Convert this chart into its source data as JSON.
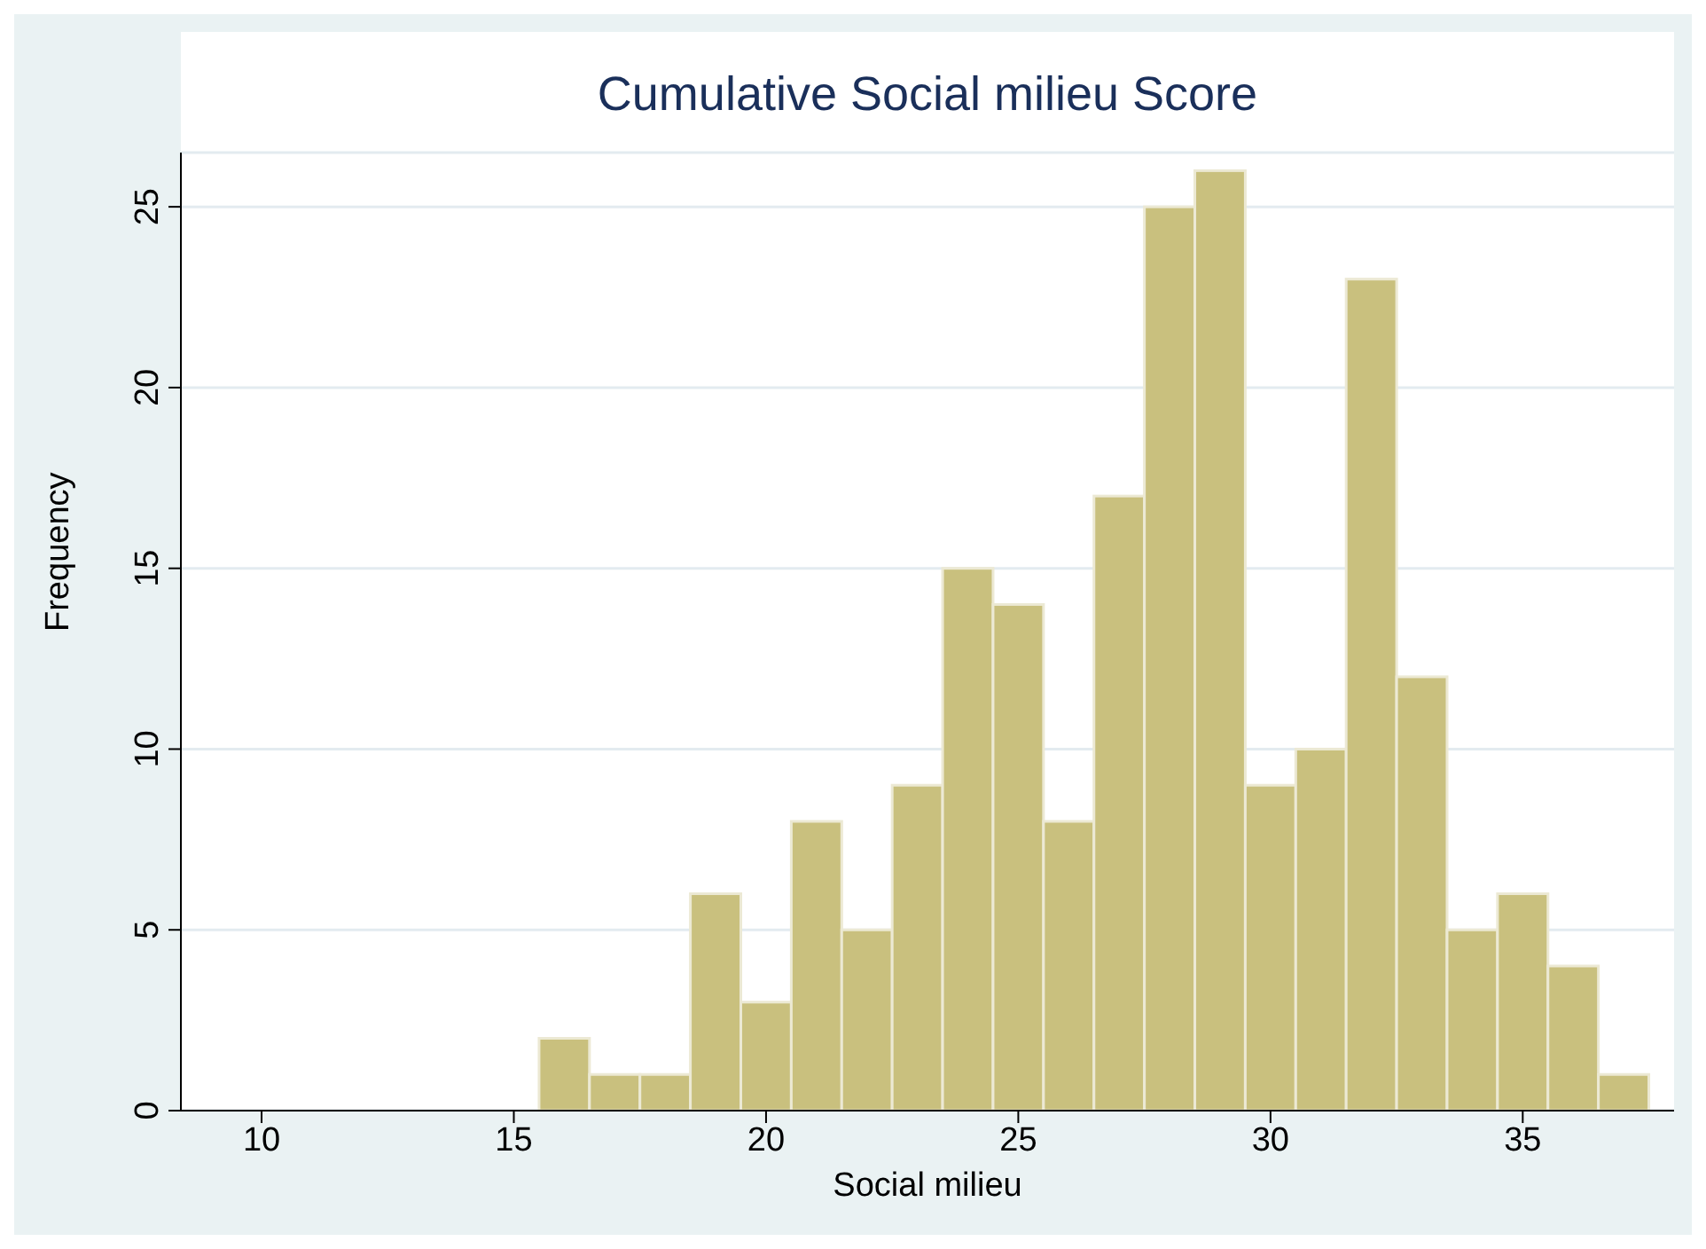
{
  "chart_data": {
    "type": "histogram",
    "title": "Cumulative Social milieu Score",
    "xlabel": "Social milieu",
    "ylabel": "Frequency",
    "bins": [
      15.5,
      16.5,
      17.5,
      18.5,
      19.5,
      20.5,
      21.5,
      22.5,
      23.5,
      24.5,
      25.5,
      26.5,
      27.5,
      28.5,
      29.5,
      30.5,
      31.5,
      32.5,
      33.5,
      34.5,
      35.5,
      36.5,
      37.5
    ],
    "values": [
      2,
      1,
      1,
      6,
      3,
      8,
      5,
      9,
      15,
      14,
      8,
      17,
      25,
      26,
      9,
      10,
      23,
      12,
      5,
      6,
      4,
      1
    ],
    "color": "#c9c07e",
    "xlim": [
      8.4,
      38
    ],
    "xticks": [
      10,
      15,
      20,
      25,
      30,
      35
    ],
    "ylim": [
      0,
      26.5
    ],
    "yticks": [
      0,
      5,
      10,
      15,
      20,
      25
    ],
    "grid": "y"
  }
}
